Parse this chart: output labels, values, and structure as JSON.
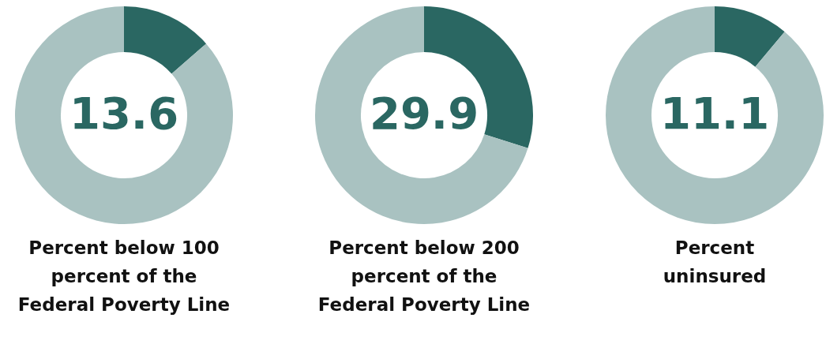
{
  "chart_data": [
    {
      "type": "donut",
      "title": "Percent below 100 percent of the Federal Poverty Line",
      "categories": [
        null,
        null
      ],
      "values": [
        13.6,
        86.4
      ],
      "colors": [
        "#2a6762",
        "#a9c2c1"
      ],
      "value_labels": [
        "13.6",
        null
      ]
    },
    {
      "type": "donut",
      "title": "Percent below 200 percent of the Federal Poverty Line",
      "categories": [
        null,
        null
      ],
      "values": [
        29.9,
        70.1
      ],
      "colors": [
        "#2a6762",
        "#a9c2c1"
      ],
      "value_labels": [
        "29.9",
        null
      ]
    },
    {
      "type": "donut",
      "title": "Percent uninsured",
      "categories": [
        null,
        null
      ],
      "values": [
        11.1,
        88.9
      ],
      "colors": [
        "#2a6762",
        "#a9c2c1"
      ],
      "value_labels": [
        "11.1",
        null
      ]
    }
  ]
}
